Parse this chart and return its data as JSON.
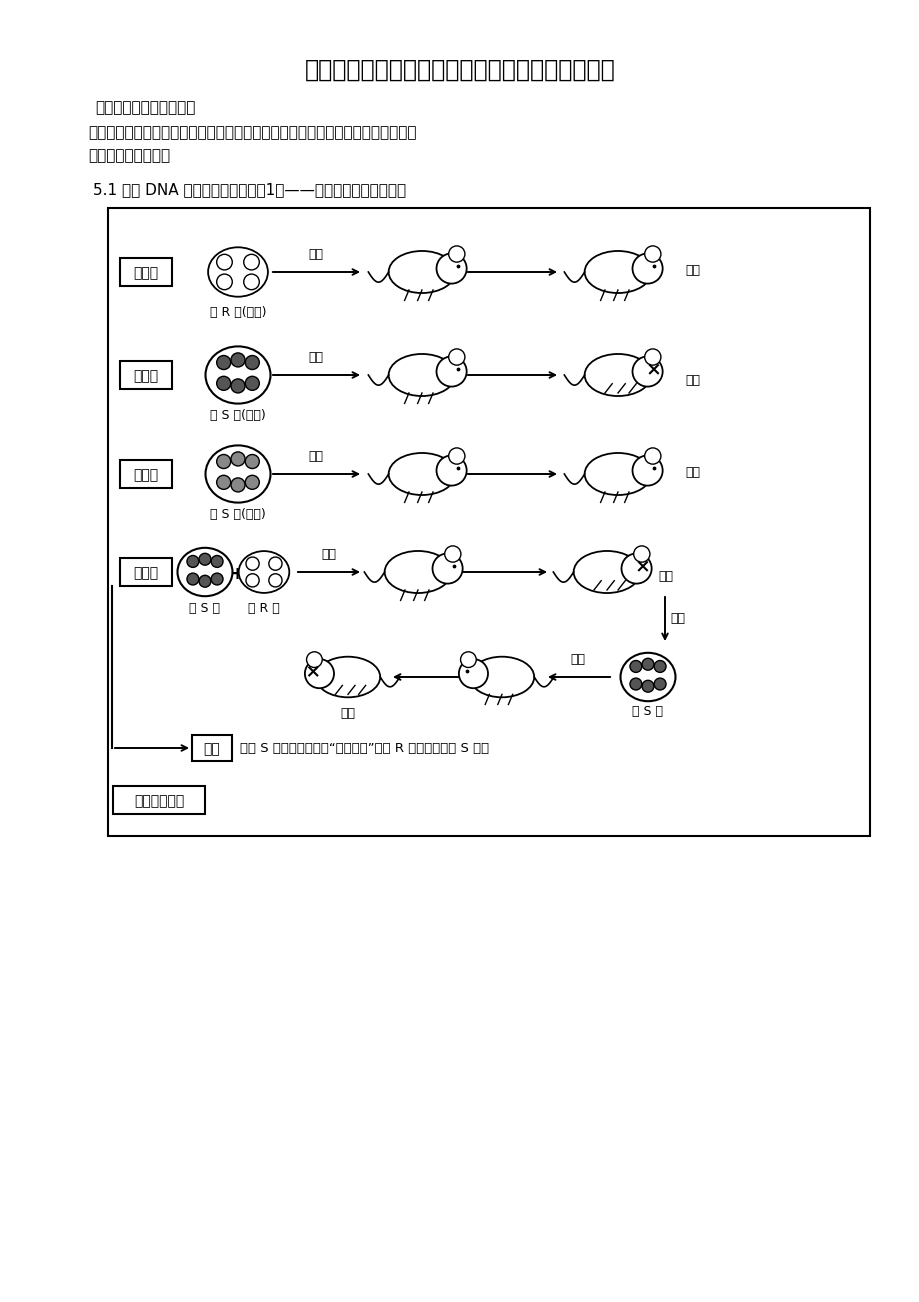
{
  "title": "高考生物复习专题之生物的遗传变异与进化上部分",
  "subtitle1": "生物的遗传、变异与进化",
  "subtitle2": "（包括遗传的物质基础、遗传规律、伴性遗传、细胞质遗传、基因突变、染色体变\n异、现代进化理论）",
  "section": "5.1 证明 DNA 是遗传物质的实验（1）——肺炎双球菌的转化实验",
  "bg_color": "#ffffff",
  "group_labels": [
    "第一组",
    "第二组",
    "第三组",
    "第四组"
  ],
  "bacteria_g1": "活 R 型(无毒)",
  "bacteria_g2": "活 S 型(有毒)",
  "bacteria_g3": "死 S 型(加热)",
  "bacteria_g4a": "死 S 型",
  "bacteria_g4b": "活 R 型",
  "outcomes": [
    "健康",
    "死亡",
    "健康",
    "死亡"
  ],
  "inject_label": "注射",
  "separation_label": "分离",
  "hypothesis_box_label": "设想",
  "hypothesis_text": "在死 S 细菌中存在某种“转化因子”，使 R 型细菌转化成 S 细菌",
  "griffith_label": "格里菲思实验",
  "bottom_dead": "死亡",
  "bottom_alive_s": "活 S 型"
}
